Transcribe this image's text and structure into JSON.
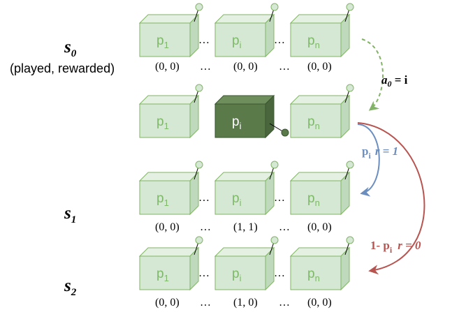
{
  "states": [
    {
      "letter": "s",
      "index": "0",
      "note": "(played, rewarded)"
    },
    {
      "letter": "s",
      "index": "1"
    },
    {
      "letter": "s",
      "index": "2"
    }
  ],
  "arms": {
    "first": {
      "base": "p",
      "sub": "1"
    },
    "middle": {
      "base": "p",
      "sub": "i"
    },
    "last": {
      "base": "p",
      "sub": "n"
    }
  },
  "separator": "…",
  "tuples": {
    "s0": [
      "(0, 0)",
      "(0, 0)",
      "(0, 0)"
    ],
    "s1": [
      "(0, 0)",
      "(1, 1)",
      "(0, 0)"
    ],
    "s2": [
      "(0, 0)",
      "(1, 0)",
      "(0, 0)"
    ]
  },
  "edges": {
    "action": {
      "var": "a",
      "sub": "0",
      "rest": " = i"
    },
    "success": {
      "prob_base": "p",
      "prob_sub": "i",
      "reward": "r = 1"
    },
    "failure": {
      "prob_prefix": "1- p",
      "prob_sub": "i",
      "reward": "r = 0"
    }
  },
  "colors": {
    "box_front": "#d5e8d4",
    "box_top": "#e4f1e2",
    "box_side": "#bfd9bd",
    "box_stroke": "#82b366",
    "box_text": "#7fb86a",
    "active_front": "#5a7a4a",
    "active_top": "#6e8f5c",
    "active_side": "#4a663c",
    "active_stroke": "#3a5530",
    "active_text": "#ffffff",
    "action_arrow": "#82b366",
    "success_arrow": "#6c8ebf",
    "failure_arrow": "#b85450"
  }
}
